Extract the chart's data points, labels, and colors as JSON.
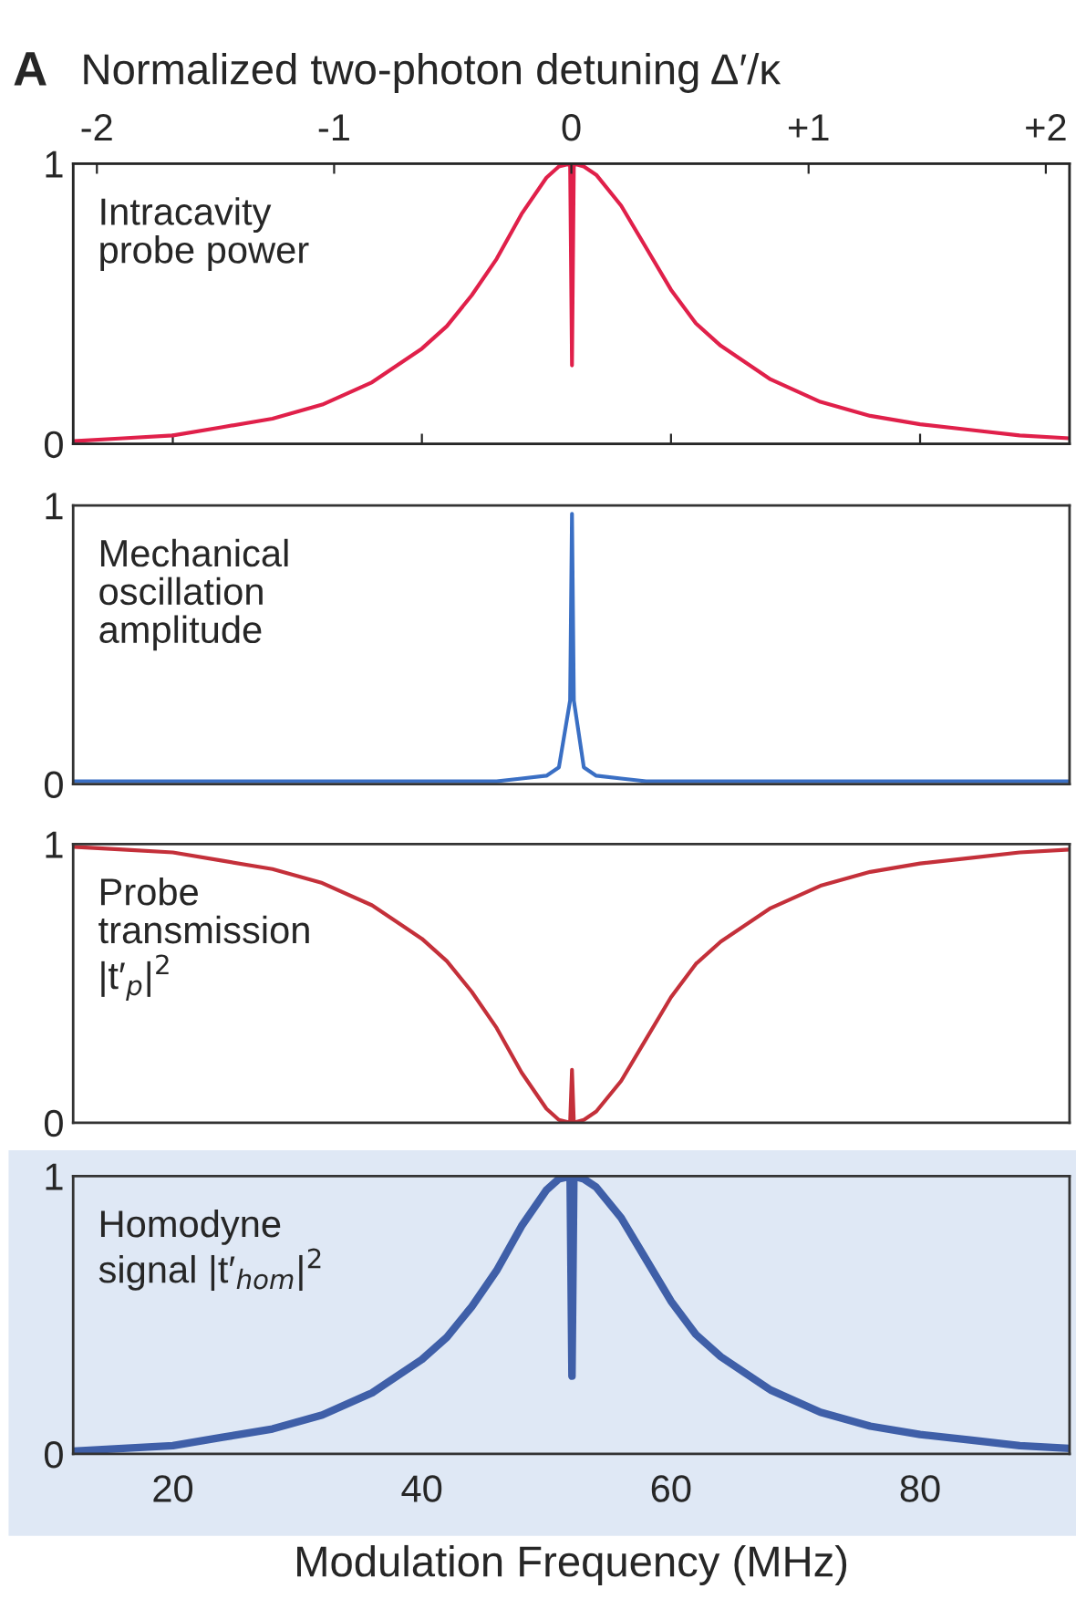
{
  "chart_data": [
    {
      "type": "line",
      "title": "A",
      "x2label": "Normalized two-photon detuning Δ′/κ",
      "annotations": [
        "Intracavity\nprobe power"
      ],
      "x": [
        12,
        16,
        20,
        24,
        28,
        32,
        36,
        40,
        42,
        44,
        46,
        48,
        50,
        51,
        51.9,
        52.05,
        52.2,
        53,
        54,
        56,
        58,
        60,
        62,
        64,
        68,
        72,
        76,
        80,
        84,
        88,
        92
      ],
      "series": [
        {
          "color": "#e0204a",
          "values": [
            0.01,
            0.02,
            0.03,
            0.06,
            0.09,
            0.14,
            0.22,
            0.34,
            0.42,
            0.53,
            0.66,
            0.82,
            0.95,
            0.99,
            1.0,
            0.28,
            1.0,
            0.99,
            0.96,
            0.85,
            0.7,
            0.55,
            0.43,
            0.35,
            0.23,
            0.15,
            0.1,
            0.07,
            0.05,
            0.03,
            0.02
          ]
        }
      ],
      "xlim": [
        12,
        92
      ],
      "ylim": [
        0,
        1
      ],
      "yticks": [
        0,
        1
      ],
      "xticks": [
        20,
        40,
        60,
        80
      ],
      "x2lim": [
        -2.1,
        2.1
      ],
      "x2ticks": [
        {
          "value": -2,
          "label": "-2"
        },
        {
          "value": -1,
          "label": "-1"
        },
        0,
        {
          "value": 1,
          "label": "+1"
        },
        {
          "value": 2,
          "label": "+2"
        }
      ],
      "tick_labels": "y",
      "grid": false,
      "legend": false
    },
    {
      "type": "line",
      "annotations": [
        "Mechanical\noscillation\namplitude"
      ],
      "x": [
        12,
        16,
        20,
        24,
        28,
        32,
        36,
        40,
        42,
        44,
        46,
        48,
        50,
        51,
        51.9,
        52.05,
        52.2,
        53,
        54,
        56,
        58,
        60,
        62,
        64,
        68,
        72,
        76,
        80,
        84,
        88,
        92
      ],
      "series": [
        {
          "color": "#3a6fc4",
          "values": [
            0.01,
            0.01,
            0.01,
            0.01,
            0.01,
            0.01,
            0.01,
            0.01,
            0.01,
            0.01,
            0.01,
            0.02,
            0.03,
            0.06,
            0.3,
            0.97,
            0.3,
            0.06,
            0.03,
            0.02,
            0.01,
            0.01,
            0.01,
            0.01,
            0.01,
            0.01,
            0.01,
            0.01,
            0.01,
            0.01,
            0.01
          ]
        }
      ],
      "xlim": [
        12,
        92
      ],
      "ylim": [
        0,
        1
      ],
      "yticks": [
        0,
        1
      ],
      "xticks": [
        20,
        40,
        60,
        80
      ],
      "tick_labels": "y",
      "grid": false,
      "legend": false
    },
    {
      "type": "line",
      "annotations": [
        "Probe\ntransmission\n|t′$_{p}$|$^{2}$"
      ],
      "x": [
        12,
        16,
        20,
        24,
        28,
        32,
        36,
        40,
        42,
        44,
        46,
        48,
        50,
        51,
        51.9,
        52.05,
        52.2,
        53,
        54,
        56,
        58,
        60,
        62,
        64,
        68,
        72,
        76,
        80,
        84,
        88,
        92
      ],
      "series": [
        {
          "color": "#c4303a",
          "values": [
            0.99,
            0.98,
            0.97,
            0.94,
            0.91,
            0.86,
            0.78,
            0.66,
            0.58,
            0.47,
            0.34,
            0.18,
            0.05,
            0.01,
            0.0,
            0.19,
            0.0,
            0.01,
            0.04,
            0.15,
            0.3,
            0.45,
            0.57,
            0.65,
            0.77,
            0.85,
            0.9,
            0.93,
            0.95,
            0.97,
            0.98
          ]
        }
      ],
      "xlim": [
        12,
        92
      ],
      "ylim": [
        0,
        1
      ],
      "yticks": [
        0,
        1
      ],
      "xticks": [
        20,
        40,
        60,
        80
      ],
      "tick_labels": "y",
      "grid": false,
      "legend": false
    },
    {
      "type": "line",
      "xlabel": "Modulation Frequency (MHz)",
      "annotations": [
        "Homodyne\nsignal |t′$_{hom}$|$^{2}$"
      ],
      "x": [
        12,
        16,
        20,
        24,
        28,
        32,
        36,
        40,
        42,
        44,
        46,
        48,
        50,
        51,
        51.9,
        52.05,
        52.2,
        53,
        54,
        56,
        58,
        60,
        62,
        64,
        68,
        72,
        76,
        80,
        84,
        88,
        92
      ],
      "series": [
        {
          "color": "#3f5fa8",
          "values": [
            0.01,
            0.02,
            0.03,
            0.06,
            0.09,
            0.14,
            0.22,
            0.34,
            0.42,
            0.53,
            0.66,
            0.82,
            0.95,
            0.99,
            1.0,
            0.28,
            1.0,
            0.99,
            0.96,
            0.85,
            0.7,
            0.55,
            0.43,
            0.35,
            0.23,
            0.15,
            0.1,
            0.07,
            0.05,
            0.03,
            0.02
          ]
        }
      ],
      "xlim": [
        12,
        92
      ],
      "ylim": [
        0,
        1
      ],
      "yticks": [
        0,
        1
      ],
      "xticks": [
        20,
        40,
        60,
        80
      ],
      "grid": false,
      "legend": false
    }
  ]
}
